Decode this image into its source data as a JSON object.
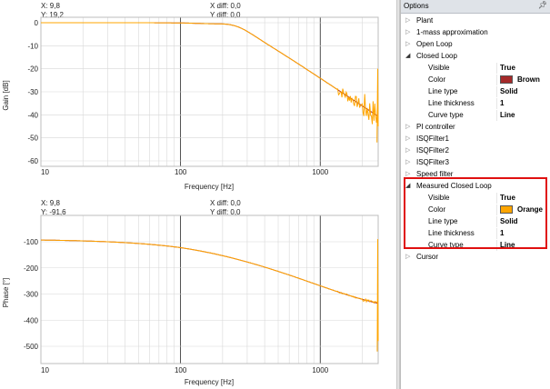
{
  "gain_plot": {
    "cursor": {
      "x_label": "X: 9,8",
      "y_label": "Y: 19,2",
      "xdiff_label": "X diff: 0,0",
      "ydiff_label": "Y diff: 0,0"
    },
    "ylabel": "Gain [dB]",
    "xlabel": "Frequency [Hz]",
    "xticks": [
      "10",
      "100",
      "1000"
    ],
    "yticks": [
      "0",
      "-10",
      "-20",
      "-30",
      "-40",
      "-50",
      "-60"
    ]
  },
  "phase_plot": {
    "cursor": {
      "x_label": "X: 9,8",
      "y_label": "Y: -91,6",
      "xdiff_label": "X diff: 0,0",
      "ydiff_label": "Y diff: 0,0"
    },
    "ylabel": "Phase [°]",
    "xlabel": "Frequency [Hz]",
    "xticks": [
      "10",
      "100",
      "1000"
    ],
    "yticks": [
      "-100",
      "-200",
      "-300",
      "-400",
      "-500"
    ]
  },
  "options": {
    "title": "Options",
    "pin_icon": "pin-icon",
    "items": [
      {
        "label": "Plant",
        "expanded": false
      },
      {
        "label": "1-mass approximation",
        "expanded": false
      },
      {
        "label": "Open Loop",
        "expanded": false
      },
      {
        "label": "Closed Loop",
        "expanded": true,
        "props": [
          {
            "name": "Visible",
            "value": "True"
          },
          {
            "name": "Color",
            "value": "Brown",
            "color": "#a52a2a"
          },
          {
            "name": "Line type",
            "value": "Solid"
          },
          {
            "name": "Line thickness",
            "value": "1"
          },
          {
            "name": "Curve type",
            "value": "Line"
          }
        ]
      },
      {
        "label": "PI controller",
        "expanded": false
      },
      {
        "label": "ISQFilter1",
        "expanded": false
      },
      {
        "label": "ISQFilter2",
        "expanded": false
      },
      {
        "label": "ISQFilter3",
        "expanded": false
      },
      {
        "label": "Speed filter",
        "expanded": false
      },
      {
        "label": "Measured Closed Loop",
        "expanded": true,
        "props": [
          {
            "name": "Visible",
            "value": "True"
          },
          {
            "name": "Color",
            "value": "Orange",
            "color": "#ffa500"
          },
          {
            "name": "Line type",
            "value": "Solid"
          },
          {
            "name": "Line thickness",
            "value": "1"
          },
          {
            "name": "Curve type",
            "value": "Line"
          }
        ]
      },
      {
        "label": "Cursor",
        "expanded": false
      }
    ]
  },
  "colors": {
    "closed_loop": "#a52a2a",
    "measured_closed_loop": "#ffa500",
    "grid_major": "#222222",
    "grid_minor": "#d8d8d8"
  }
}
